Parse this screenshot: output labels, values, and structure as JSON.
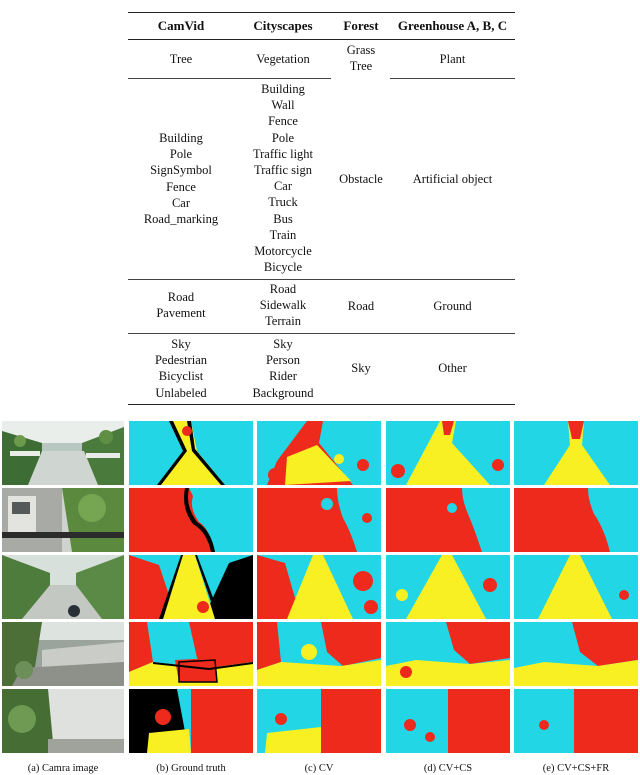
{
  "table": {
    "headers": [
      "CamVid",
      "Cityscapes",
      "Forest",
      "Greenhouse A, B, C"
    ],
    "rows": [
      {
        "camvid": [
          "Tree"
        ],
        "cityscapes": [
          "Vegetation"
        ],
        "forest": [
          "Grass",
          "Tree"
        ],
        "greenhouse": [
          "Plant"
        ]
      },
      {
        "camvid": [
          "Building",
          "Pole",
          "SignSymbol",
          "Fence",
          "Car",
          "Road_marking"
        ],
        "cityscapes": [
          "Building",
          "Wall",
          "Fence",
          "Pole",
          "Traffic light",
          "Traffic sign",
          "Car",
          "Truck",
          "Bus",
          "Train",
          "Motorcycle",
          "Bicycle"
        ],
        "forest": [
          "Obstacle"
        ],
        "greenhouse": [
          "Artificial object"
        ]
      },
      {
        "camvid": [
          "Road",
          "Pavement"
        ],
        "cityscapes": [
          "Road",
          "Sidewalk",
          "Terrain"
        ],
        "forest": [
          "Road"
        ],
        "greenhouse": [
          "Ground"
        ]
      },
      {
        "camvid": [
          "Sky",
          "Pedestrian",
          "Bicyclist",
          "Unlabeled"
        ],
        "cityscapes": [
          "Sky",
          "Person",
          "Rider",
          "Background"
        ],
        "forest": [
          "Sky"
        ],
        "greenhouse": [
          "Other"
        ]
      }
    ]
  },
  "figure": {
    "captions": [
      "(a) Camra image",
      "(b) Ground truth",
      "(c) CV",
      "(d) CV+CS",
      "(e) CV+CS+FR"
    ],
    "colors": {
      "plant": "#22d6e6",
      "artificial": "#ee2a1c",
      "ground": "#f8f022",
      "other": "#000000"
    }
  }
}
